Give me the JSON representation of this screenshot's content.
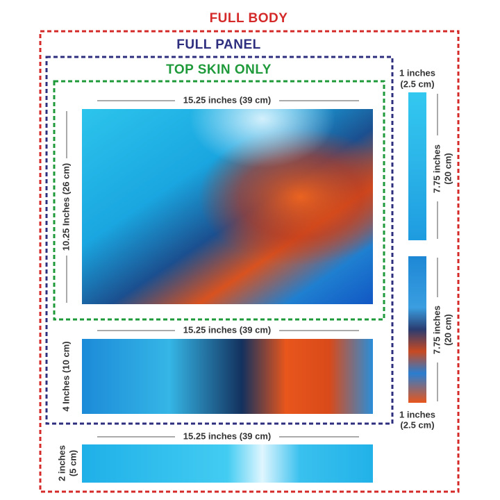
{
  "frames": {
    "full_body": "FULL BODY",
    "full_panel": "FULL PANEL",
    "top_skin_only": "TOP SKIN ONLY"
  },
  "panels": [
    {
      "width": "15.25 inches (39 cm)",
      "height": "10.25 Inches (26 cm)"
    },
    {
      "width": "15.25 inches (39 cm)",
      "height": "4 Inches (10 cm)"
    },
    {
      "width": "15.25 inches (39 cm)",
      "height_lines": [
        "2 inches",
        "(5 cm)"
      ]
    }
  ],
  "side_strips": [
    {
      "width_lines": [
        "1 inches",
        "(2.5 cm)"
      ],
      "height_lines": [
        "7.75 inches",
        "(20 cm)"
      ]
    },
    {
      "width_lines": [
        "1 inches",
        "(2.5 cm)"
      ],
      "height_lines": [
        "7.75 inches",
        "(20 cm)"
      ]
    }
  ]
}
